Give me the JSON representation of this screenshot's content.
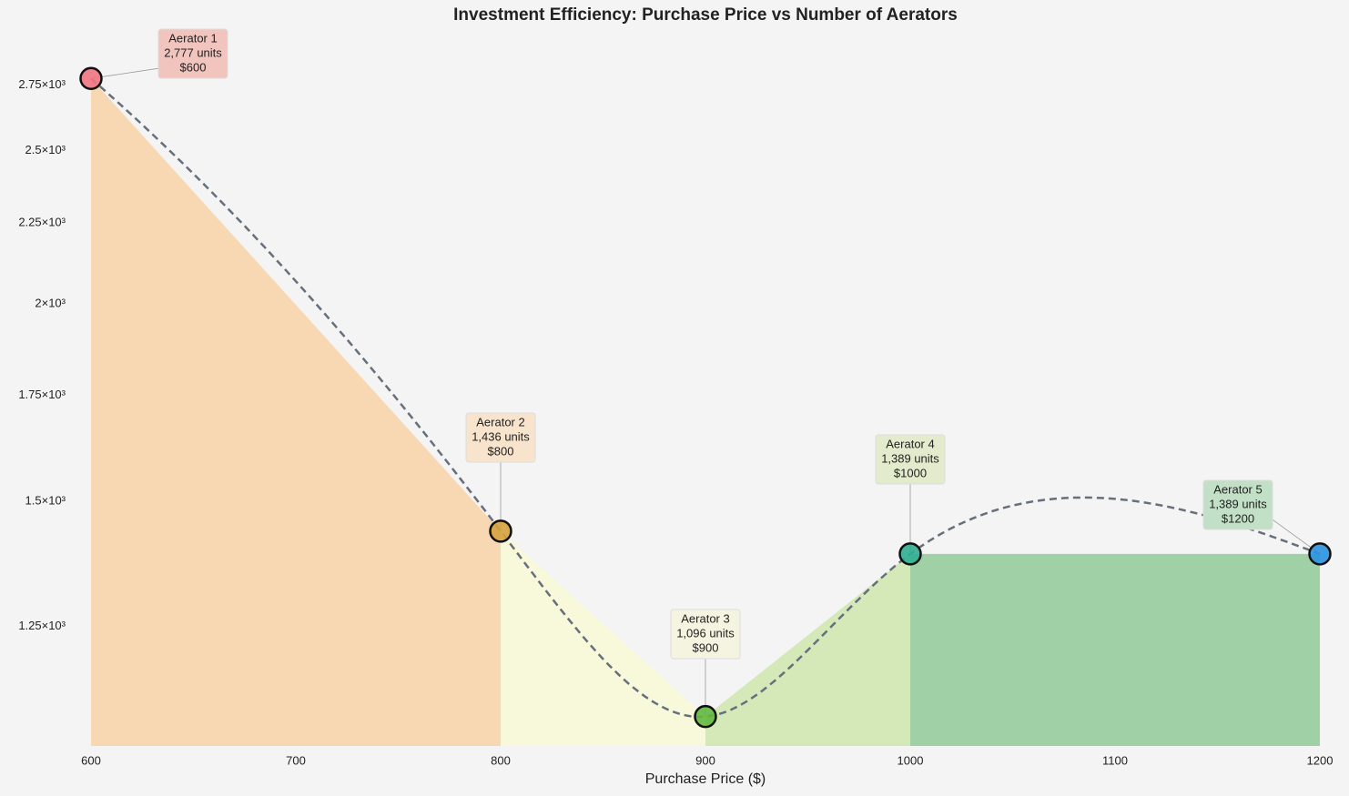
{
  "chart_data": {
    "type": "area-scatter",
    "title": "Investment Efficiency: Purchase Price vs Number of Aerators",
    "x_label": "Purchase Price ($)",
    "x": [
      600,
      800,
      900,
      1000,
      1200
    ],
    "values": [
      2777,
      1436,
      1096,
      1389,
      1389
    ],
    "names": [
      "Aerator 1",
      "Aerator 2",
      "Aerator 3",
      "Aerator 4",
      "Aerator 5"
    ],
    "value_labels": [
      "2,777 units",
      "1,436 units",
      "1,096 units",
      "1,389 units",
      "1,389 units"
    ],
    "x_value_labels": [
      "$600",
      "$800",
      "$900",
      "$1000",
      "$1200"
    ],
    "colors": [
      "#f07482",
      "#d6a23e",
      "#62b83e",
      "#2fae92",
      "#2a92e0"
    ],
    "fill_colors": [
      "#f8d8b2",
      "#f8f8da",
      "#d5e9b8",
      "#a0d0a6"
    ],
    "label_colors": [
      "#f2c4be",
      "#f8e4cc",
      "#f4f4e0",
      "#e2eccc",
      "#c2e0c6"
    ],
    "xlim": [
      600,
      1200
    ],
    "xticks": [
      600,
      700,
      800,
      900,
      1000,
      1100,
      1200
    ],
    "ylim": [
      1050,
      3000
    ],
    "log_y": true,
    "yticks": [
      {
        "value": 1250,
        "label": "1.25×10³"
      },
      {
        "value": 1500,
        "label": "1.5×10³"
      },
      {
        "value": 1750,
        "label": "1.75×10³"
      },
      {
        "value": 2000,
        "label": "2×10³"
      },
      {
        "value": 2250,
        "label": "2.25×10³"
      },
      {
        "value": 2500,
        "label": "2.5×10³"
      },
      {
        "value": 2750,
        "label": "2.75×10³"
      }
    ],
    "trend_color": "#66707c"
  }
}
